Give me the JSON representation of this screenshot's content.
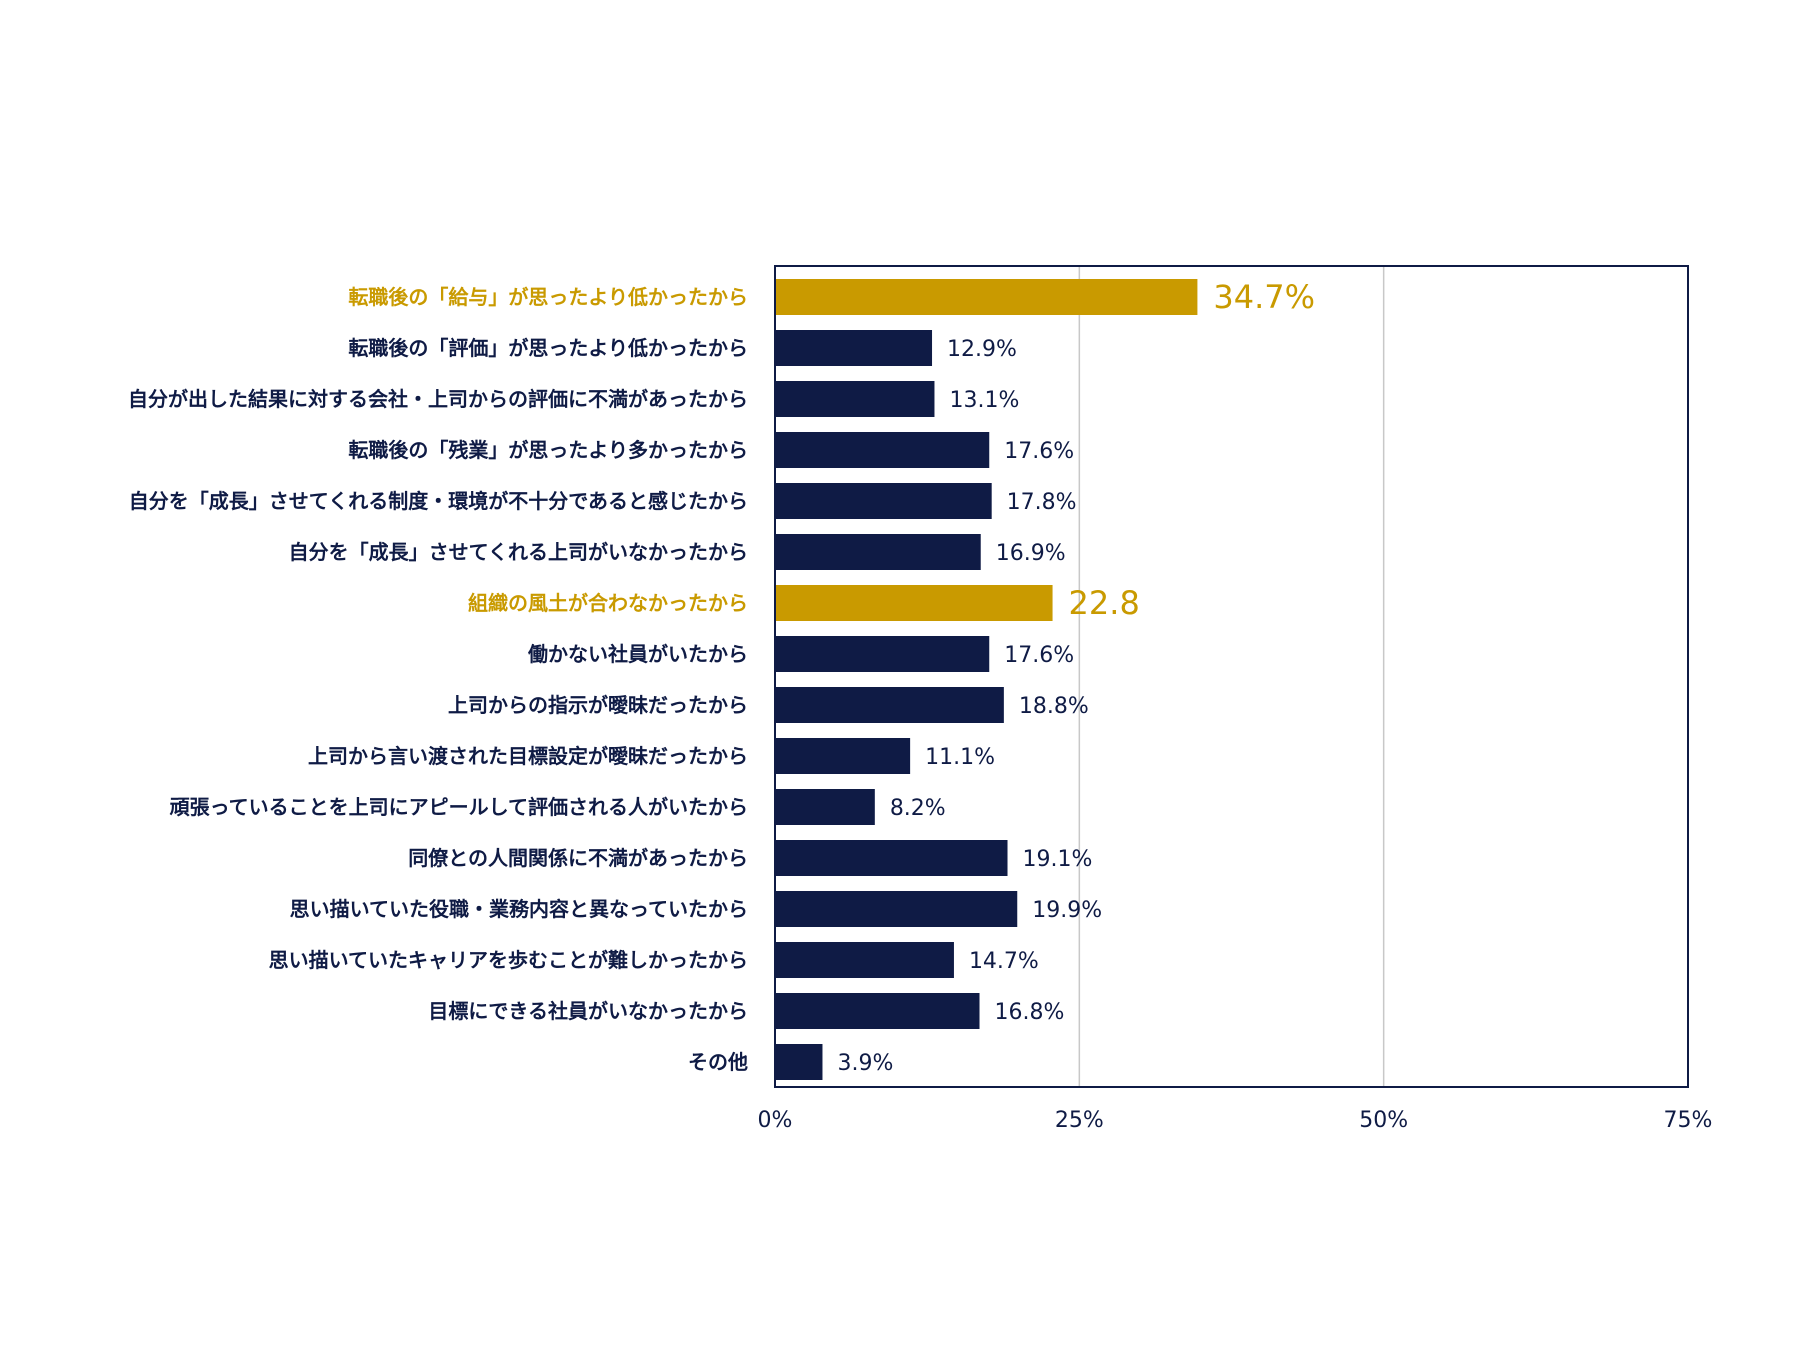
{
  "chart_data": {
    "type": "bar",
    "orientation": "horizontal",
    "title": "",
    "xlabel": "",
    "ylabel": "",
    "xlim": [
      0,
      75
    ],
    "grid": true,
    "legend": "none",
    "colors": {
      "default": "#0f1b45",
      "highlight": "#c99a00",
      "grid": "#c8c8c8",
      "frame": "#0f1b45"
    },
    "ticks": [
      {
        "value": 0,
        "label": "0%"
      },
      {
        "value": 25,
        "label": "25%"
      },
      {
        "value": 50,
        "label": "50%"
      },
      {
        "value": 75,
        "label": "75%"
      }
    ],
    "bars": [
      {
        "category": "転職後の「給与」が思ったより低かったから",
        "value": 34.7,
        "label": "34.7%",
        "highlight": true
      },
      {
        "category": "転職後の「評価」が思ったより低かったから",
        "value": 12.9,
        "label": "12.9%",
        "highlight": false
      },
      {
        "category": "自分が出した結果に対する会社・上司からの評価に不満があったから",
        "value": 13.1,
        "label": "13.1%",
        "highlight": false
      },
      {
        "category": "転職後の「残業」が思ったより多かったから",
        "value": 17.6,
        "label": "17.6%",
        "highlight": false
      },
      {
        "category": "自分を「成長」させてくれる制度・環境が不十分であると感じたから",
        "value": 17.8,
        "label": "17.8%",
        "highlight": false
      },
      {
        "category": "自分を「成長」させてくれる上司がいなかったから",
        "value": 16.9,
        "label": "16.9%",
        "highlight": false
      },
      {
        "category": "組織の風土が合わなかったから",
        "value": 22.8,
        "label": "22.8",
        "highlight": true
      },
      {
        "category": "働かない社員がいたから",
        "value": 17.6,
        "label": "17.6%",
        "highlight": false
      },
      {
        "category": "上司からの指示が曖昧だったから",
        "value": 18.8,
        "label": "18.8%",
        "highlight": false
      },
      {
        "category": "上司から言い渡された目標設定が曖昧だったから",
        "value": 11.1,
        "label": "11.1%",
        "highlight": false
      },
      {
        "category": "頑張っていることを上司にアピールして評価される人がいたから",
        "value": 8.2,
        "label": "8.2%",
        "highlight": false
      },
      {
        "category": "同僚との人間関係に不満があったから",
        "value": 19.1,
        "label": "19.1%",
        "highlight": false
      },
      {
        "category": "思い描いていた役職・業務内容と異なっていたから",
        "value": 19.9,
        "label": "19.9%",
        "highlight": false
      },
      {
        "category": "思い描いていたキャリアを歩むことが難しかったから",
        "value": 14.7,
        "label": "14.7%",
        "highlight": false
      },
      {
        "category": "目標にできる社員がいなかったから",
        "value": 16.8,
        "label": "16.8%",
        "highlight": false
      },
      {
        "category": "その他",
        "value": 3.9,
        "label": "3.9%",
        "highlight": false
      }
    ]
  }
}
